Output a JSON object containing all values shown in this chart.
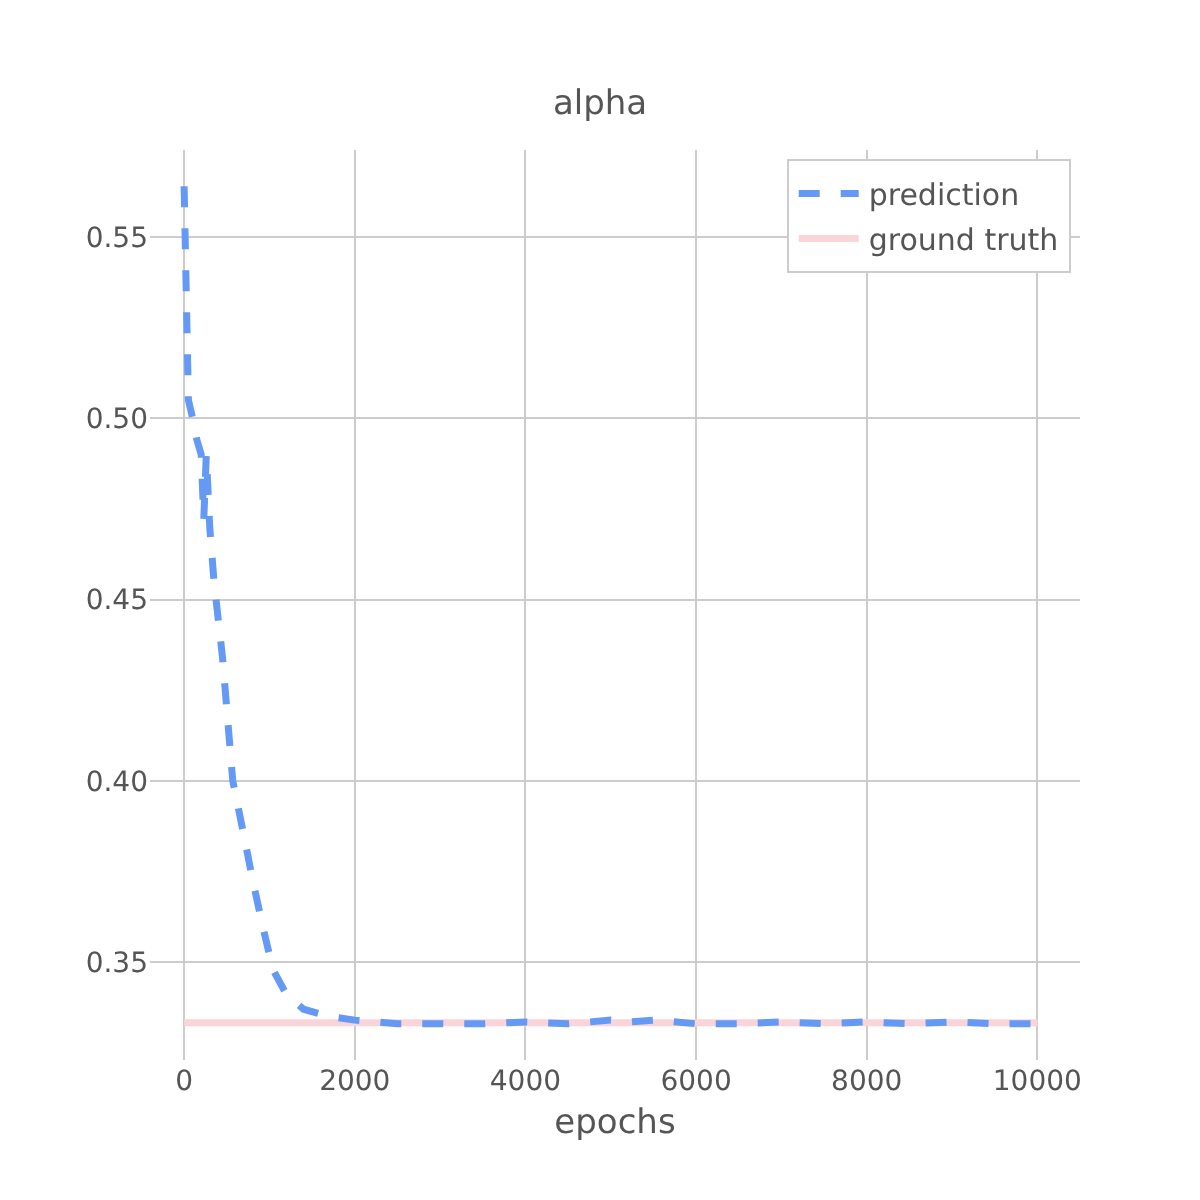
{
  "chart_data": {
    "type": "line",
    "title": "alpha",
    "xlabel": "epochs",
    "xlim": [
      -400,
      10500
    ],
    "xticks": [
      0,
      2000,
      4000,
      6000,
      8000,
      10000
    ],
    "ylim": [
      0.323,
      0.574
    ],
    "yticks": [
      {
        "value": 0.35,
        "label": "0.35"
      },
      {
        "value": 0.4,
        "label": "0.40"
      },
      {
        "value": 0.45,
        "label": "0.45"
      },
      {
        "value": 0.5,
        "label": "0.50"
      },
      {
        "value": 0.55,
        "label": "0.55"
      }
    ],
    "grid": true,
    "legend": "top right",
    "marker": "none",
    "series": [
      {
        "name": "prediction",
        "color": "#6499f5",
        "line_style": "dashed",
        "x": [
          0,
          50,
          100,
          150,
          200,
          230,
          260,
          300,
          350,
          450,
          570,
          700,
          800,
          920,
          1040,
          1200,
          1400,
          1700,
          2000,
          2500,
          3000,
          3500,
          4000,
          4500,
          5000,
          5200,
          5500,
          6000,
          6500,
          7000,
          7500,
          8000,
          8500,
          9000,
          9500,
          10000
        ],
        "values": [
          0.564,
          0.505,
          0.5,
          0.494,
          0.49,
          0.472,
          0.49,
          0.47,
          0.455,
          0.434,
          0.4,
          0.385,
          0.373,
          0.36,
          0.348,
          0.341,
          0.337,
          0.335,
          0.334,
          0.333,
          0.333,
          0.333,
          0.3335,
          0.333,
          0.334,
          0.3335,
          0.334,
          0.333,
          0.333,
          0.3335,
          0.333,
          0.3335,
          0.333,
          0.3335,
          0.333,
          0.333
        ]
      },
      {
        "name": "ground truth",
        "color": "#fad4d8",
        "line_style": "solid",
        "x": [
          0,
          10000
        ],
        "values": [
          0.3333,
          0.3333
        ]
      }
    ]
  }
}
